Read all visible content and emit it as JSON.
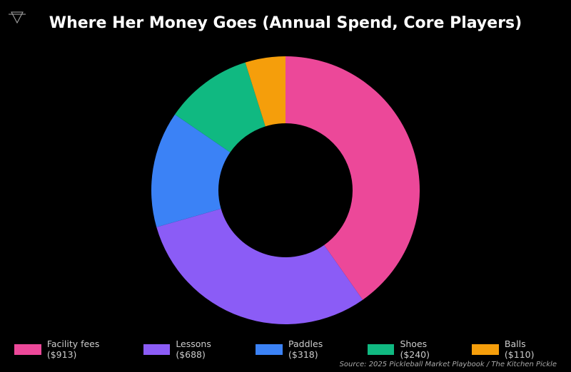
{
  "chart_data": {
    "type": "pie",
    "donut": true,
    "title": "Where Her Money Goes (Annual Spend, Core Players)",
    "categories": [
      "Facility fees",
      "Lessons",
      "Paddles",
      "Shoes",
      "Balls"
    ],
    "values": [
      913,
      688,
      318,
      240,
      110
    ],
    "legend_labels": [
      "Facility fees ($913)",
      "Lessons ($688)",
      "Paddles ($318)",
      "Shoes ($240)",
      "Balls ($110)"
    ],
    "colors": [
      "#ec4899",
      "#8b5cf6",
      "#3b82f6",
      "#10b981",
      "#f59e0b"
    ],
    "legend_placement": "bottom",
    "start_angle": "top",
    "direction": "clockwise",
    "source": "Source: 2025 Pickleball Market Playbook / The Kitchen Pickle"
  },
  "logo_icon": "triangle-logo-icon"
}
